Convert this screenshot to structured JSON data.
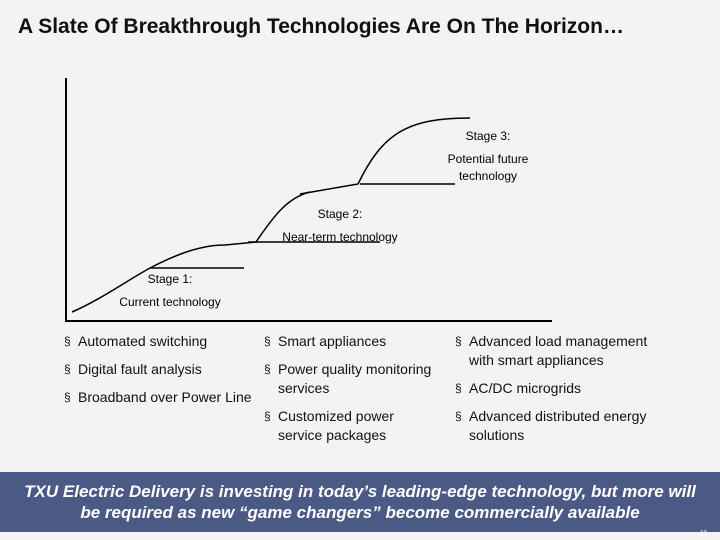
{
  "title": "A Slate Of Breakthrough Technologies Are On The Horizon…",
  "stages": [
    {
      "heading": "Stage 1:",
      "subtitle": "Current technology"
    },
    {
      "heading": "Stage 2:",
      "subtitle": "Near-term technology"
    },
    {
      "heading": "Stage 3:",
      "subtitle": "Potential future technology"
    }
  ],
  "columns": [
    {
      "items": [
        "Automated switching",
        "Digital fault analysis",
        "Broadband over Power Line"
      ]
    },
    {
      "items": [
        "Smart appliances",
        "Power quality monitoring services",
        "Customized power service packages"
      ]
    },
    {
      "items": [
        "Advanced load management with smart appliances",
        "AC/DC microgrids",
        "Advanced distributed energy solutions"
      ]
    }
  ],
  "banner": "TXU Electric Delivery is investing in today’s leading-edge technology, but more will be required as new “game changers” become commercially available",
  "page_number": "11",
  "colors": {
    "background": "#f3f3f3",
    "banner": "#4a5a84",
    "banner_text": "#ffffff",
    "lines": "#000000"
  }
}
